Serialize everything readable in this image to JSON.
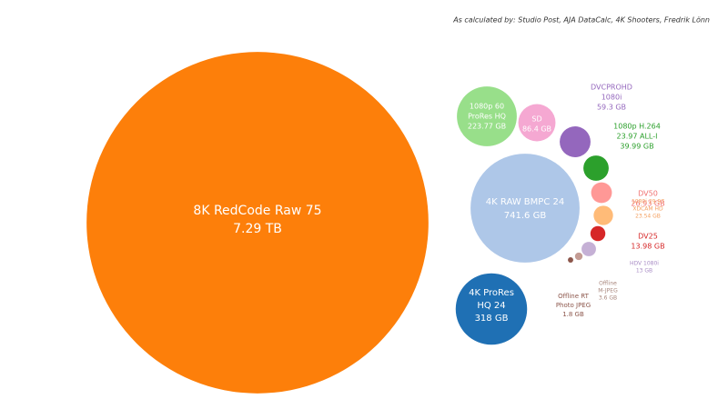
{
  "chart_data": {
    "type": "bubble",
    "subtitle": "As calculated by: Studio Post, AJA DataCalc, 4K Shooters, Fredrik Lönn",
    "bubbles": [
      {
        "label": [
          "8K RedCode Raw 75"
        ],
        "value": 7290,
        "value_label": "7.29 TB",
        "color": "#fd7f0a"
      },
      {
        "label": [
          "4K RAW  BMPC 24"
        ],
        "value": 741.6,
        "value_label": "741.6 GB",
        "color": "#aec7e8"
      },
      {
        "label": [
          "4K ProRes",
          "HQ 24"
        ],
        "value": 318,
        "value_label": "318 GB",
        "color": "#1f70b4"
      },
      {
        "label": [
          "1080p 60",
          "ProRes HQ"
        ],
        "value": 223.77,
        "value_label": "223.77 GB",
        "color": "#98df8a"
      },
      {
        "label": [
          "SD"
        ],
        "value": 86.4,
        "value_label": "86.4 GB",
        "color": "#f5a8d2"
      },
      {
        "label": [
          "DVCPROHD",
          "1080i"
        ],
        "value": 59.3,
        "value_label": "59.3 GB",
        "color": "#9467bd"
      },
      {
        "label": [
          "1080p H.264",
          "23.97 ALL-I"
        ],
        "value": 39.99,
        "value_label": "39.99 GB",
        "color": "#2ca02c"
      },
      {
        "label": [
          "DV50"
        ],
        "value": 26.93,
        "value_label": "26.93 GB",
        "color": "#ff9896"
      },
      {
        "label": [
          "1080i 29.97",
          "XDCAM HD"
        ],
        "value": 23.54,
        "value_label": "23.54 GB",
        "color": "#ffbb78"
      },
      {
        "label": [
          "DV25"
        ],
        "value": 13.98,
        "value_label": "13.98 GB",
        "color": "#d62728"
      },
      {
        "label": [
          "HDV 1080i"
        ],
        "value": 13,
        "value_label": "13 GB",
        "color": "#c5b0d5"
      },
      {
        "label": [
          "Offline",
          "M-JPEG"
        ],
        "value": 3.6,
        "value_label": "3.6 GB",
        "color": "#c49c94"
      },
      {
        "label": [
          "Offline RT",
          "Photo JPEG"
        ],
        "value": 1.8,
        "value_label": "1.8 GB",
        "color": "#8c564b"
      }
    ]
  }
}
